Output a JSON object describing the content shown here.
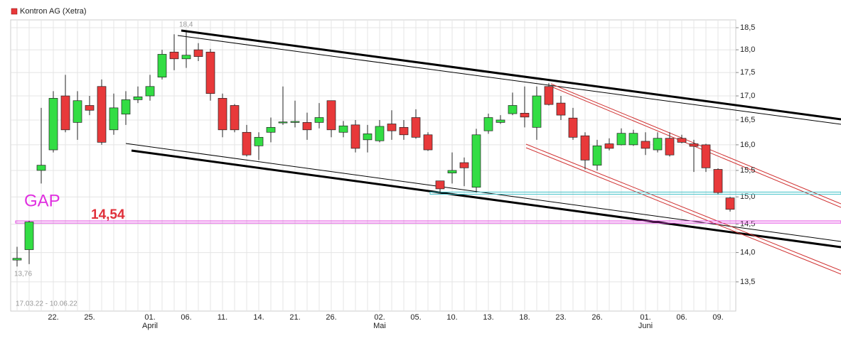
{
  "chart_data": {
    "type": "candlestick",
    "legend": "Kontron AG (Xetra)",
    "color": "#e8393a",
    "up_color": "#33dd44",
    "down_color": "#e8393a",
    "log_scale": true,
    "grid": true,
    "date_range": "17.03.22 - 10.06.22",
    "categories": [
      null,
      null,
      null,
      "22.",
      null,
      null,
      "25.",
      null,
      null,
      null,
      null,
      "01.",
      null,
      null,
      "06.",
      null,
      null,
      "11.",
      null,
      null,
      "14.",
      null,
      null,
      "21.",
      null,
      null,
      "26.",
      null,
      null,
      null,
      "02.",
      null,
      null,
      "05.",
      null,
      null,
      "10.",
      null,
      null,
      "13.",
      null,
      null,
      "18.",
      null,
      null,
      "23.",
      null,
      null,
      "26.",
      null,
      null,
      null,
      "01.",
      null,
      null,
      "06.",
      null,
      null,
      "09.",
      null
    ],
    "months": [
      {
        "label": "April",
        "category": 11
      },
      {
        "label": "Mai",
        "category": 30
      },
      {
        "label": "Juni",
        "category": 52
      }
    ],
    "open": [
      13.87,
      14.05,
      15.5,
      15.9,
      17.0,
      16.45,
      16.8,
      17.2,
      16.3,
      16.62,
      16.92,
      17.0,
      17.4,
      17.95,
      17.8,
      18.0,
      17.95,
      16.95,
      16.8,
      16.25,
      15.98,
      16.25,
      16.44,
      16.45,
      16.45,
      16.45,
      16.9,
      16.25,
      16.4,
      16.1,
      16.08,
      16.42,
      16.35,
      16.55,
      16.2,
      15.3,
      15.45,
      15.65,
      15.18,
      16.28,
      16.45,
      16.63,
      16.64,
      16.35,
      17.2,
      16.85,
      16.54,
      16.18,
      15.6,
      16.02,
      16.0,
      16.0,
      16.07,
      15.9,
      16.13,
      16.13,
      16.02,
      16.0,
      15.52,
      14.98
    ],
    "high": [
      14.1,
      14.56,
      16.75,
      17.1,
      17.45,
      17.1,
      17.0,
      17.35,
      17.05,
      17.1,
      17.2,
      17.45,
      18.0,
      18.35,
      18.4,
      18.15,
      18.02,
      17.05,
      16.83,
      16.4,
      16.25,
      16.55,
      17.2,
      16.9,
      16.65,
      16.85,
      16.9,
      16.48,
      16.5,
      16.4,
      16.5,
      16.7,
      16.5,
      16.72,
      16.25,
      15.3,
      15.85,
      15.75,
      16.32,
      16.63,
      16.6,
      17.07,
      17.2,
      17.2,
      17.27,
      17.0,
      16.75,
      16.25,
      16.1,
      16.13,
      16.33,
      16.3,
      16.25,
      16.25,
      16.25,
      16.2,
      16.1,
      16.02,
      15.54,
      15.0
    ],
    "low": [
      13.76,
      13.8,
      15.25,
      15.85,
      16.25,
      16.1,
      16.6,
      16.0,
      16.2,
      16.4,
      16.85,
      16.9,
      17.35,
      17.55,
      17.6,
      17.75,
      16.9,
      16.15,
      16.25,
      15.77,
      15.7,
      16.05,
      16.4,
      16.35,
      16.1,
      16.33,
      16.15,
      16.15,
      15.85,
      15.85,
      16.05,
      16.1,
      16.1,
      16.12,
      15.88,
      15.07,
      15.25,
      15.2,
      15.08,
      16.22,
      16.42,
      16.6,
      16.35,
      16.1,
      16.8,
      16.5,
      16.1,
      15.52,
      15.5,
      15.89,
      15.99,
      15.98,
      15.8,
      15.85,
      15.77,
      16.03,
      15.47,
      15.47,
      15.05,
      14.73
    ],
    "close": [
      13.9,
      14.54,
      15.6,
      16.95,
      16.3,
      16.9,
      16.7,
      16.05,
      16.75,
      16.92,
      16.98,
      17.2,
      17.9,
      17.8,
      17.88,
      17.85,
      17.05,
      16.3,
      16.3,
      15.8,
      16.15,
      16.35,
      16.46,
      16.47,
      16.3,
      16.55,
      16.3,
      16.38,
      15.93,
      16.22,
      16.37,
      16.28,
      16.2,
      16.15,
      15.9,
      15.15,
      15.5,
      15.55,
      16.2,
      16.55,
      16.5,
      16.8,
      16.56,
      17.0,
      16.82,
      16.6,
      16.15,
      15.7,
      15.98,
      15.93,
      16.23,
      16.23,
      15.93,
      16.13,
      15.8,
      16.05,
      15.97,
      15.55,
      15.08,
      14.77
    ],
    "ylim": [
      13.02,
      18.68
    ],
    "yticks": [
      {
        "value": 13.5,
        "label": "13,5"
      },
      {
        "value": 14.0,
        "label": "14,0"
      },
      {
        "value": 14.5,
        "label": "14,5"
      },
      {
        "value": 15.0,
        "label": "15,0"
      },
      {
        "value": 15.5,
        "label": "15,5"
      },
      {
        "value": 16.0,
        "label": "16,0"
      },
      {
        "value": 16.5,
        "label": "16,5"
      },
      {
        "value": 17.0,
        "label": "17,0"
      },
      {
        "value": 17.5,
        "label": "17,5"
      },
      {
        "value": 18.0,
        "label": "18,0"
      },
      {
        "value": 18.5,
        "label": "18,5"
      }
    ],
    "hlines": [
      {
        "value": 14.54,
        "color": "#e040e0"
      },
      {
        "value": 15.07,
        "color": "#40c0c8"
      }
    ],
    "annotations": [
      "18,4",
      "13,76",
      "GAP",
      "14,54"
    ]
  }
}
